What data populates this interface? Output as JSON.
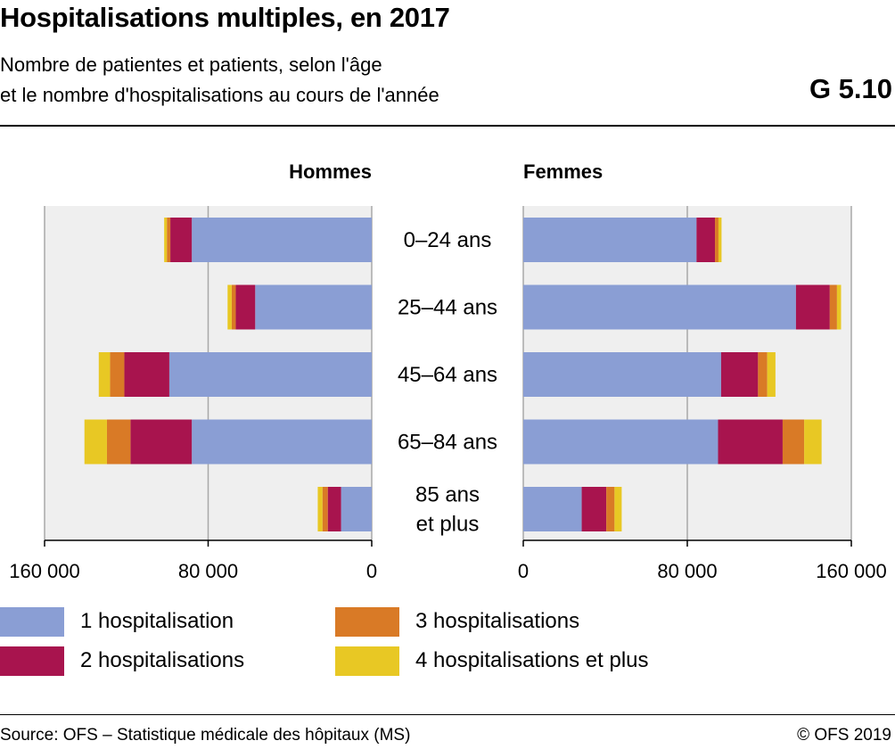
{
  "title": "Hospitalisations multiples, en 2017",
  "subtitle_line1": "Nombre de patientes et patients, selon l'âge",
  "subtitle_line2": "et le nombre d'hospitalisations au cours de l'année",
  "chart_code": "G 5.10",
  "source": "Source: OFS – Statistique médicale des hôpitaux (MS)",
  "copyright": "© OFS 2019",
  "colors": {
    "1 hospitalisation": "#8a9ed4",
    "2 hospitalisations": "#a8144e",
    "3 hospitalisations": "#d97a26",
    "4 hospitalisations et plus": "#e8c824",
    "panel_background": "#efefef",
    "grid": "#a8a8a8"
  },
  "legend": [
    {
      "label": "1 hospitalisation",
      "color": "#8a9ed4"
    },
    {
      "label": "2 hospitalisations",
      "color": "#a8144e"
    },
    {
      "label": "3 hospitalisations",
      "color": "#d97a26"
    },
    {
      "label": "4 hospitalisations et plus",
      "color": "#e8c824"
    }
  ],
  "chart_data": {
    "type": "bar",
    "orientation": "horizontal",
    "stacked": true,
    "layout": "population-pyramid",
    "categories": [
      [
        "0–24 ans"
      ],
      [
        "25–44 ans"
      ],
      [
        "45–64 ans"
      ],
      [
        "65–84 ans"
      ],
      [
        "85 ans",
        "et plus"
      ]
    ],
    "panels": [
      {
        "name": "Hommes",
        "direction": "left",
        "xlim": [
          0,
          160000
        ],
        "ticks": [
          160000,
          80000,
          0
        ],
        "tick_labels": [
          "160 000",
          "80 000",
          "0"
        ],
        "series": [
          {
            "name": "1 hospitalisation",
            "values": [
              88000,
              57000,
              99000,
              88000,
              15000
            ]
          },
          {
            "name": "2 hospitalisations",
            "values": [
              10500,
              9500,
              22000,
              30000,
              6500
            ]
          },
          {
            "name": "3 hospitalisations",
            "values": [
              1700,
              2000,
              7000,
              11500,
              2600
            ]
          },
          {
            "name": "4 hospitalisations et plus",
            "values": [
              1300,
              2000,
              5500,
              11000,
              2300
            ]
          }
        ]
      },
      {
        "name": "Femmes",
        "direction": "right",
        "xlim": [
          0,
          160000
        ],
        "ticks": [
          0,
          80000,
          160000
        ],
        "tick_labels": [
          "0",
          "80 000",
          "160 000"
        ],
        "series": [
          {
            "name": "1 hospitalisation",
            "values": [
              84500,
              133000,
              96500,
              95000,
              28500
            ]
          },
          {
            "name": "2 hospitalisations",
            "values": [
              9000,
              16500,
              18000,
              31500,
              12000
            ]
          },
          {
            "name": "3 hospitalisations",
            "values": [
              1700,
              3500,
              4500,
              10500,
              4000
            ]
          },
          {
            "name": "4 hospitalisations et plus",
            "values": [
              1500,
              2000,
              4000,
              8500,
              3500
            ]
          }
        ]
      }
    ],
    "grid": true,
    "legend_position": "bottom"
  }
}
